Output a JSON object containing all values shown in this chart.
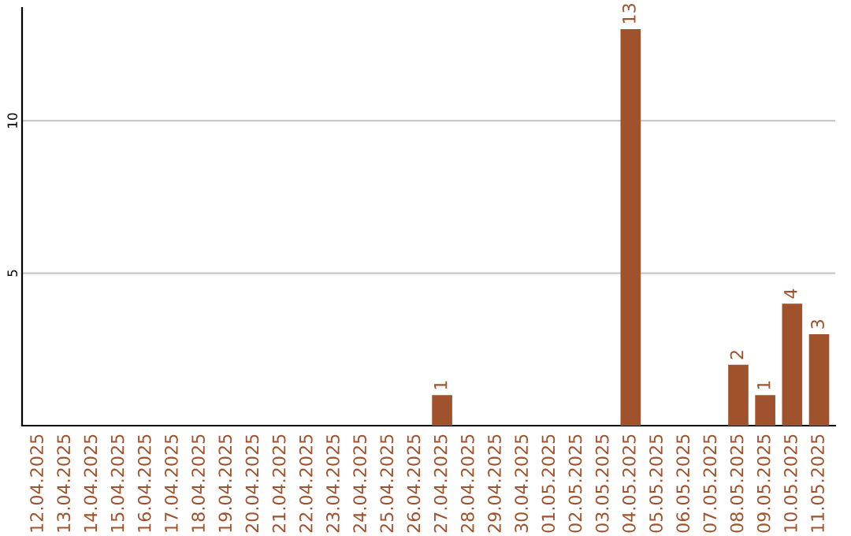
{
  "chart_data": {
    "type": "bar",
    "categories": [
      "12.04.2025",
      "13.04.2025",
      "14.04.2025",
      "15.04.2025",
      "16.04.2025",
      "17.04.2025",
      "18.04.2025",
      "19.04.2025",
      "20.04.2025",
      "21.04.2025",
      "22.04.2025",
      "23.04.2025",
      "24.04.2025",
      "25.04.2025",
      "26.04.2025",
      "27.04.2025",
      "28.04.2025",
      "29.04.2025",
      "30.04.2025",
      "01.05.2025",
      "02.05.2025",
      "03.05.2025",
      "04.05.2025",
      "05.05.2025",
      "06.05.2025",
      "07.05.2025",
      "08.05.2025",
      "09.05.2025",
      "10.05.2025",
      "11.05.2025"
    ],
    "values": [
      0,
      0,
      0,
      0,
      0,
      0,
      0,
      0,
      0,
      0,
      0,
      0,
      0,
      0,
      0,
      1,
      0,
      0,
      0,
      0,
      0,
      0,
      13,
      0,
      0,
      0,
      2,
      1,
      4,
      3
    ],
    "value_labels": [
      null,
      null,
      null,
      null,
      null,
      null,
      null,
      null,
      null,
      null,
      null,
      null,
      null,
      null,
      null,
      "1",
      null,
      null,
      null,
      null,
      null,
      null,
      "13",
      null,
      null,
      null,
      "2",
      "1",
      "4",
      "3"
    ],
    "color": "#a0522d",
    "ylim": [
      0,
      13.7
    ],
    "yticks": [
      5,
      10
    ],
    "grid": "y"
  }
}
